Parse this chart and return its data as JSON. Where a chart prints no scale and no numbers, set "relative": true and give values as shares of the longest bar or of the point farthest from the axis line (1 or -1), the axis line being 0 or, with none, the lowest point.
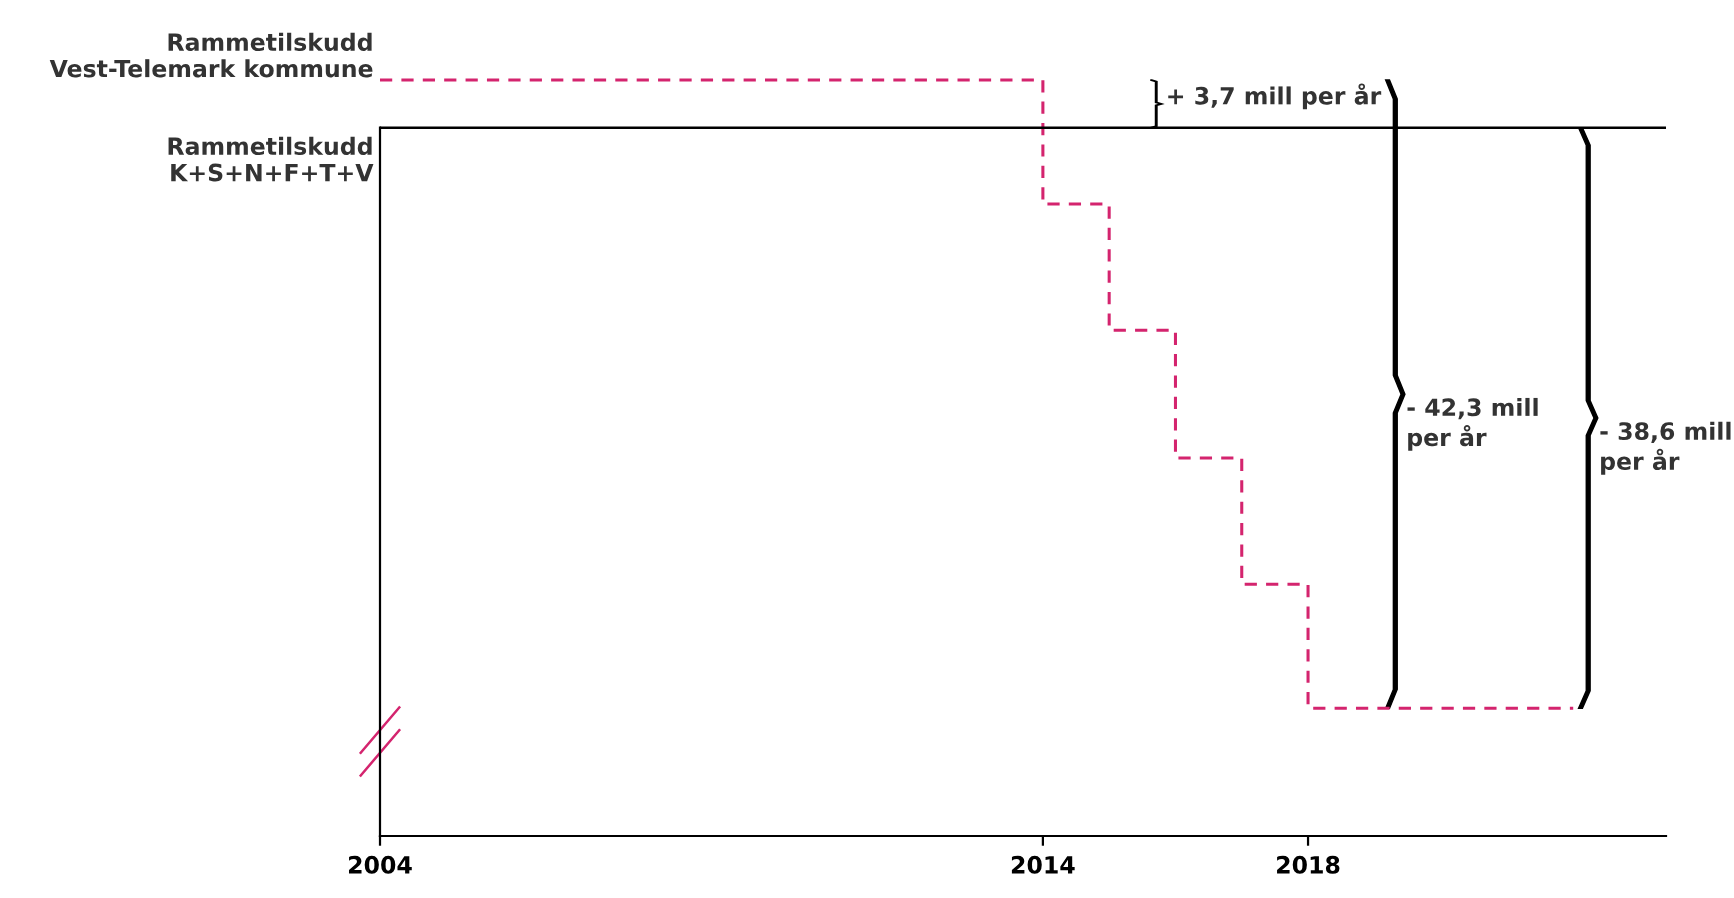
{
  "chart_data": {
    "type": "step",
    "relative": true,
    "x": [
      2004,
      2014,
      2015,
      2016,
      2017,
      2018,
      2022
    ],
    "xlim": [
      2004,
      2023.4
    ],
    "xticks": [
      2004,
      2014,
      2018
    ],
    "series": [
      {
        "name": "Rammetilskudd\nVest-Telemark kommune",
        "color": "#d4246e",
        "values": [
          1,
          0.836,
          0.669,
          0.5,
          0.333,
          0.169,
          0.169
        ]
      }
    ],
    "line_style": "dashed",
    "marker": "none",
    "grid": false,
    "ref_lines": [
      {
        "axis": "y",
        "value": 0.937,
        "label": "Rammetilskudd\nK+S+N+F+T+V",
        "color": "#000000",
        "line_style": "solid"
      }
    ],
    "annotations": [
      "+ 3,7 mill per år",
      "- 42,3 mill\nper år",
      "- 38,6 mill\nper år"
    ]
  }
}
